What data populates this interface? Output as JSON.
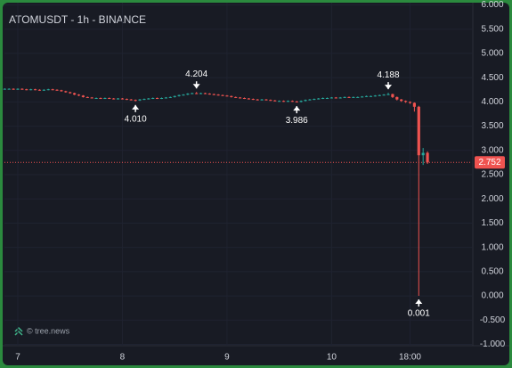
{
  "chart_data": {
    "type": "candlestick",
    "title": "ATOMUSDT - 1h - BINANCE",
    "watermark": "© tree.news",
    "up_color": "#26a69a",
    "down_color": "#ef5350",
    "xlim": [
      -3.06,
      104.2
    ],
    "ylim": [
      -1,
      6
    ],
    "xticks": [
      {
        "value": 0,
        "label": "7"
      },
      {
        "value": 24,
        "label": "8"
      },
      {
        "value": 48,
        "label": "9"
      },
      {
        "value": 72,
        "label": "10"
      },
      {
        "value": 90,
        "label": "18:00"
      }
    ],
    "yticks": [
      {
        "value": 6,
        "label": "6.000"
      },
      {
        "value": 5.5,
        "label": "5.500"
      },
      {
        "value": 5,
        "label": "5.000"
      },
      {
        "value": 4.5,
        "label": "4.500"
      },
      {
        "value": 4,
        "label": "4.000"
      },
      {
        "value": 3.5,
        "label": "3.500"
      },
      {
        "value": 3,
        "label": "3.000"
      },
      {
        "value": 2.5,
        "label": "2.500"
      },
      {
        "value": 2,
        "label": "2.000"
      },
      {
        "value": 1.5,
        "label": "1.500"
      },
      {
        "value": 1,
        "label": "1.000"
      },
      {
        "value": 0.5,
        "label": "0.500"
      },
      {
        "value": 0,
        "label": "0.000"
      },
      {
        "value": -0.5,
        "label": "-0.500"
      },
      {
        "value": -1,
        "label": "-1.000"
      }
    ],
    "last_price": {
      "value": 2.752,
      "label": "2.752"
    },
    "annotations": [
      {
        "x": 27,
        "value": 4.01,
        "label": "4.010",
        "position": "below"
      },
      {
        "x": 41,
        "value": 4.204,
        "label": "4.204",
        "position": "above"
      },
      {
        "x": 64,
        "value": 3.986,
        "label": "3.986",
        "position": "below"
      },
      {
        "x": 85,
        "value": 4.188,
        "label": "4.188",
        "position": "above"
      },
      {
        "x": 92,
        "value": 0.001,
        "label": "0.001",
        "position": "below"
      }
    ],
    "x": [
      -3,
      -2,
      -1,
      0,
      1,
      2,
      3,
      4,
      5,
      6,
      7,
      8,
      9,
      10,
      11,
      12,
      13,
      14,
      15,
      16,
      17,
      18,
      19,
      20,
      21,
      22,
      23,
      24,
      25,
      26,
      27,
      28,
      29,
      30,
      31,
      32,
      33,
      34,
      35,
      36,
      37,
      38,
      39,
      40,
      41,
      42,
      43,
      44,
      45,
      46,
      47,
      48,
      49,
      50,
      51,
      52,
      53,
      54,
      55,
      56,
      57,
      58,
      59,
      60,
      61,
      62,
      63,
      64,
      65,
      66,
      67,
      68,
      69,
      70,
      71,
      72,
      73,
      74,
      75,
      76,
      77,
      78,
      79,
      80,
      81,
      82,
      83,
      84,
      85,
      86,
      87,
      88,
      89,
      90,
      91,
      92,
      93,
      94
    ],
    "candles": [
      [
        4.27,
        4.28,
        4.26,
        4.27
      ],
      [
        4.27,
        4.28,
        4.26,
        4.27
      ],
      [
        4.27,
        4.28,
        4.25,
        4.26
      ],
      [
        4.26,
        4.28,
        4.25,
        4.27
      ],
      [
        4.27,
        4.28,
        4.25,
        4.26
      ],
      [
        4.26,
        4.27,
        4.24,
        4.25
      ],
      [
        4.25,
        4.27,
        4.24,
        4.26
      ],
      [
        4.26,
        4.27,
        4.24,
        4.25
      ],
      [
        4.25,
        4.26,
        4.23,
        4.24
      ],
      [
        4.24,
        4.26,
        4.23,
        4.25
      ],
      [
        4.25,
        4.27,
        4.24,
        4.26
      ],
      [
        4.26,
        4.27,
        4.24,
        4.25
      ],
      [
        4.25,
        4.26,
        4.23,
        4.24
      ],
      [
        4.24,
        4.25,
        4.21,
        4.22
      ],
      [
        4.22,
        4.23,
        4.19,
        4.2
      ],
      [
        4.2,
        4.21,
        4.17,
        4.18
      ],
      [
        4.18,
        4.19,
        4.14,
        4.15
      ],
      [
        4.15,
        4.16,
        4.12,
        4.13
      ],
      [
        4.13,
        4.14,
        4.09,
        4.1
      ],
      [
        4.1,
        4.11,
        4.08,
        4.09
      ],
      [
        4.09,
        4.1,
        4.07,
        4.08
      ],
      [
        4.08,
        4.09,
        4.07,
        4.08
      ],
      [
        4.08,
        4.09,
        4.06,
        4.07
      ],
      [
        4.07,
        4.09,
        4.06,
        4.08
      ],
      [
        4.08,
        4.09,
        4.06,
        4.07
      ],
      [
        4.07,
        4.08,
        4.05,
        4.06
      ],
      [
        4.06,
        4.08,
        4.05,
        4.07
      ],
      [
        4.07,
        4.08,
        4.05,
        4.06
      ],
      [
        4.06,
        4.07,
        4.04,
        4.05
      ],
      [
        4.05,
        4.06,
        4.03,
        4.04
      ],
      [
        4.04,
        4.05,
        4.01,
        4.03
      ],
      [
        4.03,
        4.06,
        4.02,
        4.05
      ],
      [
        4.05,
        4.07,
        4.04,
        4.06
      ],
      [
        4.06,
        4.08,
        4.05,
        4.07
      ],
      [
        4.07,
        4.09,
        4.06,
        4.08
      ],
      [
        4.08,
        4.09,
        4.06,
        4.07
      ],
      [
        4.07,
        4.09,
        4.06,
        4.08
      ],
      [
        4.08,
        4.1,
        4.07,
        4.09
      ],
      [
        4.09,
        4.11,
        4.08,
        4.1
      ],
      [
        4.1,
        4.13,
        4.09,
        4.12
      ],
      [
        4.12,
        4.15,
        4.11,
        4.14
      ],
      [
        4.14,
        4.16,
        4.13,
        4.15
      ],
      [
        4.15,
        4.18,
        4.14,
        4.17
      ],
      [
        4.17,
        4.19,
        4.16,
        4.18
      ],
      [
        4.18,
        4.204,
        4.16,
        4.17
      ],
      [
        4.17,
        4.19,
        4.16,
        4.18
      ],
      [
        4.18,
        4.19,
        4.16,
        4.17
      ],
      [
        4.17,
        4.18,
        4.15,
        4.16
      ],
      [
        4.16,
        4.17,
        4.14,
        4.15
      ],
      [
        4.15,
        4.16,
        4.13,
        4.14
      ],
      [
        4.14,
        4.15,
        4.12,
        4.13
      ],
      [
        4.13,
        4.14,
        4.11,
        4.12
      ],
      [
        4.12,
        4.13,
        4.09,
        4.1
      ],
      [
        4.1,
        4.11,
        4.08,
        4.09
      ],
      [
        4.09,
        4.1,
        4.07,
        4.08
      ],
      [
        4.08,
        4.09,
        4.06,
        4.07
      ],
      [
        4.07,
        4.08,
        4.05,
        4.06
      ],
      [
        4.06,
        4.07,
        4.04,
        4.05
      ],
      [
        4.05,
        4.06,
        4.03,
        4.04
      ],
      [
        4.04,
        4.06,
        4.03,
        4.05
      ],
      [
        4.05,
        4.06,
        4.03,
        4.04
      ],
      [
        4.04,
        4.05,
        4.02,
        4.03
      ],
      [
        4.03,
        4.04,
        4.01,
        4.02
      ],
      [
        4.02,
        4.03,
        4.01,
        4.02
      ],
      [
        4.02,
        4.03,
        4.0,
        4.01
      ],
      [
        4.01,
        4.03,
        4.0,
        4.02
      ],
      [
        4.02,
        4.03,
        4.0,
        4.01
      ],
      [
        4.01,
        4.02,
        3.986,
        4.0
      ],
      [
        4.0,
        4.03,
        3.99,
        4.02
      ],
      [
        4.02,
        4.05,
        4.01,
        4.04
      ],
      [
        4.04,
        4.06,
        4.03,
        4.05
      ],
      [
        4.05,
        4.07,
        4.04,
        4.06
      ],
      [
        4.06,
        4.08,
        4.05,
        4.07
      ],
      [
        4.07,
        4.09,
        4.06,
        4.08
      ],
      [
        4.08,
        4.09,
        4.07,
        4.08
      ],
      [
        4.08,
        4.1,
        4.07,
        4.09
      ],
      [
        4.09,
        4.1,
        4.07,
        4.08
      ],
      [
        4.08,
        4.1,
        4.07,
        4.09
      ],
      [
        4.09,
        4.11,
        4.08,
        4.1
      ],
      [
        4.1,
        4.11,
        4.08,
        4.09
      ],
      [
        4.09,
        4.11,
        4.08,
        4.1
      ],
      [
        4.1,
        4.11,
        4.09,
        4.1
      ],
      [
        4.1,
        4.12,
        4.09,
        4.11
      ],
      [
        4.11,
        4.13,
        4.1,
        4.12
      ],
      [
        4.12,
        4.13,
        4.11,
        4.12
      ],
      [
        4.12,
        4.14,
        4.11,
        4.13
      ],
      [
        4.13,
        4.15,
        4.12,
        4.14
      ],
      [
        4.14,
        4.16,
        4.13,
        4.15
      ],
      [
        4.15,
        4.188,
        4.14,
        4.16
      ],
      [
        4.16,
        4.17,
        4.08,
        4.1
      ],
      [
        4.1,
        4.11,
        4.03,
        4.05
      ],
      [
        4.05,
        4.06,
        4.0,
        4.02
      ],
      [
        4.02,
        4.03,
        3.98,
        4.0
      ],
      [
        4.0,
        4.01,
        3.96,
        3.98
      ],
      [
        3.98,
        3.99,
        3.8,
        3.9
      ],
      [
        3.9,
        3.92,
        0.001,
        2.9
      ],
      [
        2.9,
        3.05,
        2.7,
        2.95
      ],
      [
        2.95,
        2.98,
        2.72,
        2.752
      ]
    ]
  }
}
